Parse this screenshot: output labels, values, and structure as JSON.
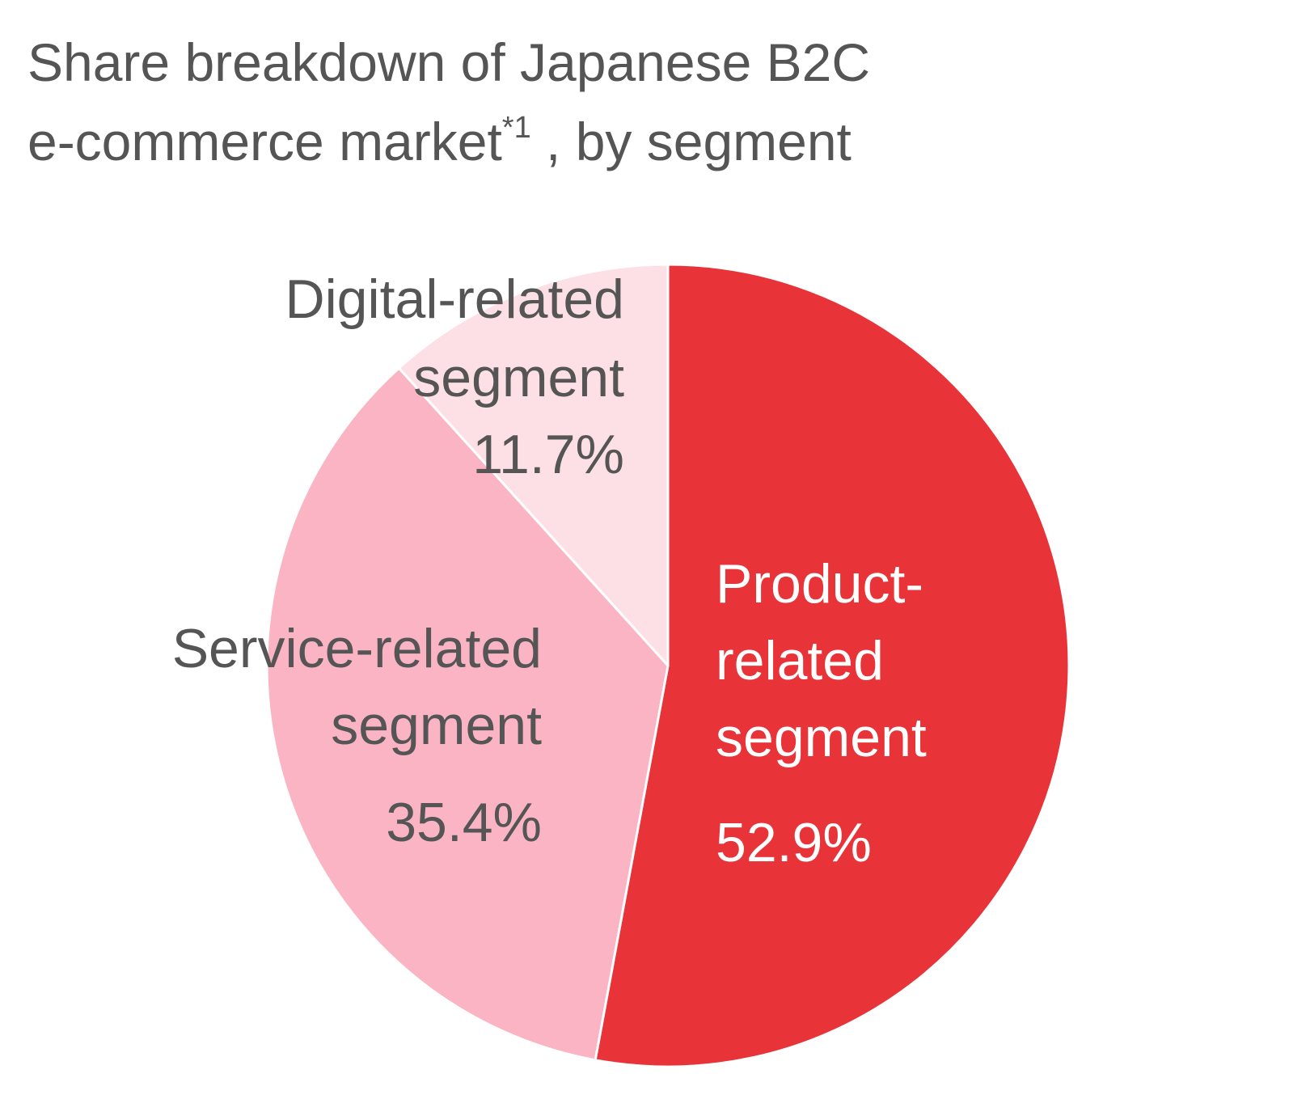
{
  "title": {
    "line1": "Share breakdown of Japanese B2C",
    "line2": "e-commerce market",
    "footnote": "*1",
    "line2_end": " , by segment"
  },
  "chart_data": {
    "type": "pie",
    "start_angle_deg": 0,
    "direction": "clockwise",
    "slices": [
      {
        "label": [
          "Product-",
          "related",
          "segment"
        ],
        "value": 52.9,
        "value_label": "52.9%",
        "color": "#e83338",
        "text_color": "#ffffff"
      },
      {
        "label": [
          "Service-related",
          "segment"
        ],
        "value": 35.4,
        "value_label": "35.4%",
        "color": "#fbb4c3",
        "text_color": "#555555"
      },
      {
        "label": [
          "Digital-related",
          "segment"
        ],
        "value": 11.7,
        "value_label": "11.7%",
        "color": "#fde0e5",
        "text_color": "#555555"
      }
    ]
  }
}
